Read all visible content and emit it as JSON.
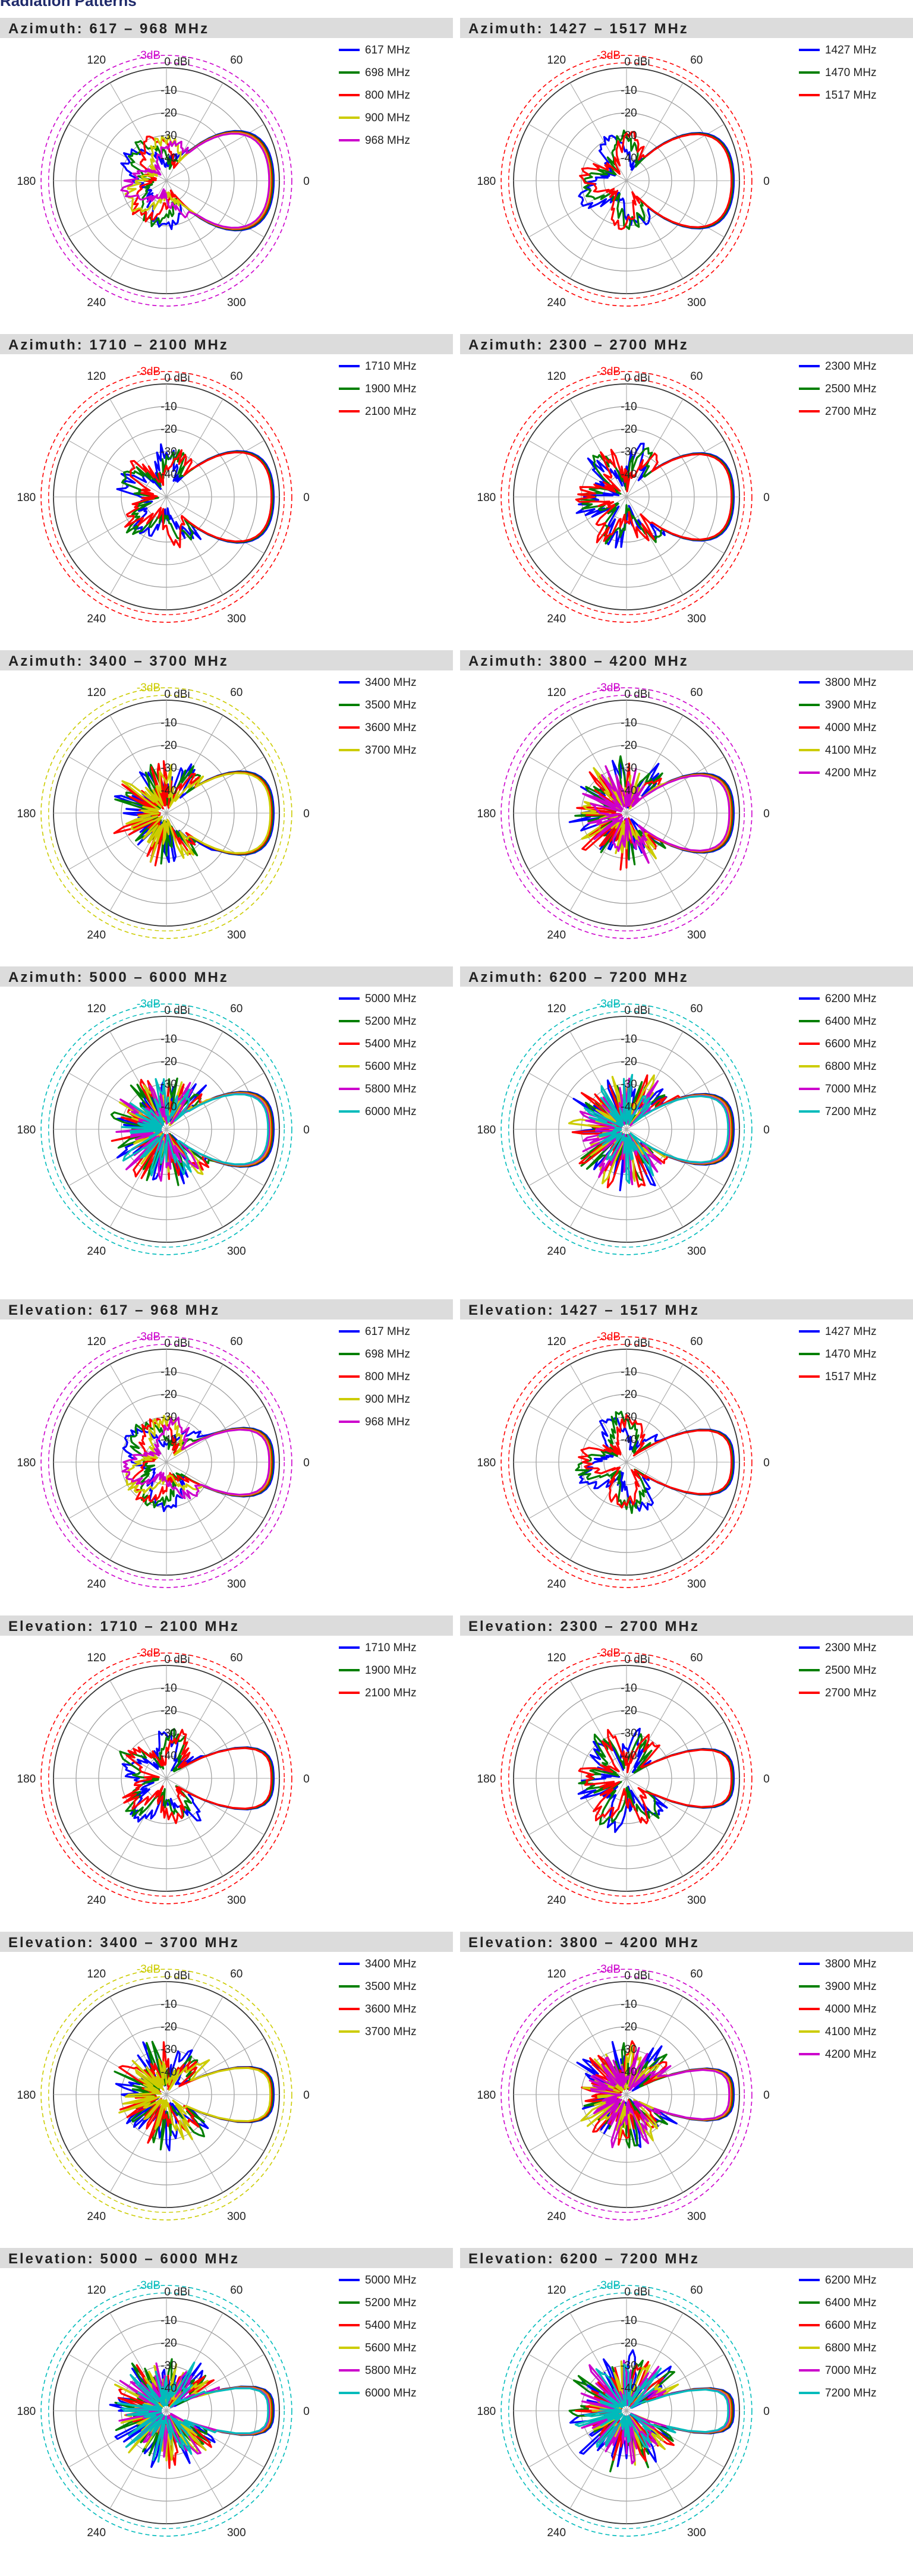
{
  "page": {
    "title": "Radiation Patterns"
  },
  "chart_data": [
    {
      "type": "polar",
      "title": "Azimuth:  617 – 968 MHz",
      "kind": "azimuth",
      "series": [
        {
          "name": "617 MHz",
          "color": "#0000ff"
        },
        {
          "name": "698 MHz",
          "color": "#007f00"
        },
        {
          "name": "800 MHz",
          "color": "#ff0000"
        },
        {
          "name": "900 MHz",
          "color": "#cccc00"
        },
        {
          "name": "968 MHz",
          "color": "#cc00cc"
        }
      ],
      "gain_labels": [
        "0 dBi",
        "-10",
        "-20",
        "-30",
        "-40"
      ],
      "angle_labels": [
        "0",
        "60",
        "120",
        "180",
        "240",
        "300"
      ],
      "ref_label": "-3dB",
      "ref_color": "#cc00cc"
    },
    {
      "type": "polar",
      "title": "Azimuth:  1427 – 1517 MHz",
      "kind": "azimuth",
      "series": [
        {
          "name": "1427 MHz",
          "color": "#0000ff"
        },
        {
          "name": "1470 MHz",
          "color": "#007f00"
        },
        {
          "name": "1517 MHz",
          "color": "#ff0000"
        }
      ],
      "gain_labels": [
        "0 dBi",
        "-10",
        "-20",
        "-30",
        "-40"
      ],
      "angle_labels": [
        "0",
        "60",
        "120",
        "180",
        "240",
        "300"
      ],
      "ref_label": "-3dB",
      "ref_color": "#ff0000"
    },
    {
      "type": "polar",
      "title": "Azimuth:  1710 – 2100 MHz",
      "kind": "azimuth",
      "series": [
        {
          "name": "1710 MHz",
          "color": "#0000ff"
        },
        {
          "name": "1900 MHz",
          "color": "#007f00"
        },
        {
          "name": "2100 MHz",
          "color": "#ff0000"
        }
      ],
      "gain_labels": [
        "0 dBi",
        "-10",
        "-20",
        "-30",
        "-40"
      ],
      "angle_labels": [
        "0",
        "60",
        "120",
        "180",
        "240",
        "300"
      ],
      "ref_label": "-3dB",
      "ref_color": "#ff0000"
    },
    {
      "type": "polar",
      "title": "Azimuth:  2300 – 2700 MHz",
      "kind": "azimuth",
      "series": [
        {
          "name": "2300 MHz",
          "color": "#0000ff"
        },
        {
          "name": "2500 MHz",
          "color": "#007f00"
        },
        {
          "name": "2700 MHz",
          "color": "#ff0000"
        }
      ],
      "gain_labels": [
        "0 dBi",
        "-10",
        "-20",
        "-30",
        "-40"
      ],
      "angle_labels": [
        "0",
        "60",
        "120",
        "180",
        "240",
        "300"
      ],
      "ref_label": "-3dB",
      "ref_color": "#ff0000"
    },
    {
      "type": "polar",
      "title": "Azimuth:  3400 – 3700 MHz",
      "kind": "azimuth",
      "series": [
        {
          "name": "3400 MHz",
          "color": "#0000ff"
        },
        {
          "name": "3500 MHz",
          "color": "#007f00"
        },
        {
          "name": "3600 MHz",
          "color": "#ff0000"
        },
        {
          "name": "3700 MHz",
          "color": "#cccc00"
        }
      ],
      "gain_labels": [
        "0 dBi",
        "-10",
        "-20",
        "-30",
        "-40"
      ],
      "angle_labels": [
        "0",
        "60",
        "120",
        "180",
        "240",
        "300"
      ],
      "ref_label": "-3dB",
      "ref_color": "#cccc00"
    },
    {
      "type": "polar",
      "title": "Azimuth:  3800 – 4200 MHz",
      "kind": "azimuth",
      "series": [
        {
          "name": "3800 MHz",
          "color": "#0000ff"
        },
        {
          "name": "3900 MHz",
          "color": "#007f00"
        },
        {
          "name": "4000 MHz",
          "color": "#ff0000"
        },
        {
          "name": "4100 MHz",
          "color": "#cccc00"
        },
        {
          "name": "4200 MHz",
          "color": "#cc00cc"
        }
      ],
      "gain_labels": [
        "0 dBi",
        "-10",
        "-20",
        "-30",
        "-40"
      ],
      "angle_labels": [
        "0",
        "60",
        "120",
        "180",
        "240",
        "300"
      ],
      "ref_label": "-3dB",
      "ref_color": "#cc00cc"
    },
    {
      "type": "polar",
      "title": "Azimuth:  5000 – 6000 MHz",
      "kind": "azimuth",
      "series": [
        {
          "name": "5000 MHz",
          "color": "#0000ff"
        },
        {
          "name": "5200 MHz",
          "color": "#007f00"
        },
        {
          "name": "5400 MHz",
          "color": "#ff0000"
        },
        {
          "name": "5600 MHz",
          "color": "#cccc00"
        },
        {
          "name": "5800 MHz",
          "color": "#cc00cc"
        },
        {
          "name": "6000 MHz",
          "color": "#00bbbb"
        }
      ],
      "gain_labels": [
        "0 dBi",
        "-10",
        "-20",
        "-30",
        "-40"
      ],
      "angle_labels": [
        "0",
        "60",
        "120",
        "180",
        "240",
        "300"
      ],
      "ref_label": "-3dB",
      "ref_color": "#00bbbb"
    },
    {
      "type": "polar",
      "title": "Azimuth:  6200 – 7200 MHz",
      "kind": "azimuth",
      "series": [
        {
          "name": "6200 MHz",
          "color": "#0000ff"
        },
        {
          "name": "6400 MHz",
          "color": "#007f00"
        },
        {
          "name": "6600 MHz",
          "color": "#ff0000"
        },
        {
          "name": "6800 MHz",
          "color": "#cccc00"
        },
        {
          "name": "7000 MHz",
          "color": "#cc00cc"
        },
        {
          "name": "7200 MHz",
          "color": "#00bbbb"
        }
      ],
      "gain_labels": [
        "0 dBi",
        "-10",
        "-20",
        "-30",
        "-40"
      ],
      "angle_labels": [
        "0",
        "60",
        "120",
        "180",
        "240",
        "300"
      ],
      "ref_label": "-3dB",
      "ref_color": "#00bbbb"
    },
    {
      "type": "polar",
      "title": "Elevation:  617 – 968 MHz",
      "kind": "elevation",
      "series": [
        {
          "name": "617 MHz",
          "color": "#0000ff"
        },
        {
          "name": "698 MHz",
          "color": "#007f00"
        },
        {
          "name": "800 MHz",
          "color": "#ff0000"
        },
        {
          "name": "900 MHz",
          "color": "#cccc00"
        },
        {
          "name": "968 MHz",
          "color": "#cc00cc"
        }
      ],
      "gain_labels": [
        "0 dBi",
        "-10",
        "-20",
        "-30",
        "-40"
      ],
      "angle_labels": [
        "0",
        "60",
        "120",
        "180",
        "240",
        "300"
      ],
      "ref_label": "-3dB",
      "ref_color": "#cc00cc"
    },
    {
      "type": "polar",
      "title": "Elevation:  1427 – 1517 MHz",
      "kind": "elevation",
      "series": [
        {
          "name": "1427 MHz",
          "color": "#0000ff"
        },
        {
          "name": "1470 MHz",
          "color": "#007f00"
        },
        {
          "name": "1517 MHz",
          "color": "#ff0000"
        }
      ],
      "gain_labels": [
        "0 dBi",
        "-10",
        "-20",
        "-30",
        "-40"
      ],
      "angle_labels": [
        "0",
        "60",
        "120",
        "180",
        "240",
        "300"
      ],
      "ref_label": "-3dB",
      "ref_color": "#ff0000"
    },
    {
      "type": "polar",
      "title": "Elevation:  1710 – 2100 MHz",
      "kind": "elevation",
      "series": [
        {
          "name": "1710 MHz",
          "color": "#0000ff"
        },
        {
          "name": "1900 MHz",
          "color": "#007f00"
        },
        {
          "name": "2100 MHz",
          "color": "#ff0000"
        }
      ],
      "gain_labels": [
        "0 dBi",
        "-10",
        "-20",
        "-30",
        "-40"
      ],
      "angle_labels": [
        "0",
        "60",
        "120",
        "180",
        "240",
        "300"
      ],
      "ref_label": "-3dB",
      "ref_color": "#ff0000"
    },
    {
      "type": "polar",
      "title": "Elevation:  2300 – 2700 MHz",
      "kind": "elevation",
      "series": [
        {
          "name": "2300 MHz",
          "color": "#0000ff"
        },
        {
          "name": "2500 MHz",
          "color": "#007f00"
        },
        {
          "name": "2700 MHz",
          "color": "#ff0000"
        }
      ],
      "gain_labels": [
        "0 dBi",
        "-10",
        "-20",
        "-30",
        "-40"
      ],
      "angle_labels": [
        "0",
        "60",
        "120",
        "180",
        "240",
        "300"
      ],
      "ref_label": "-3dB",
      "ref_color": "#ff0000"
    },
    {
      "type": "polar",
      "title": "Elevation:  3400 – 3700 MHz",
      "kind": "elevation",
      "series": [
        {
          "name": "3400 MHz",
          "color": "#0000ff"
        },
        {
          "name": "3500 MHz",
          "color": "#007f00"
        },
        {
          "name": "3600 MHz",
          "color": "#ff0000"
        },
        {
          "name": "3700 MHz",
          "color": "#cccc00"
        }
      ],
      "gain_labels": [
        "0 dBi",
        "-10",
        "-20",
        "-30",
        "-40"
      ],
      "angle_labels": [
        "0",
        "60",
        "120",
        "180",
        "240",
        "300"
      ],
      "ref_label": "-3dB",
      "ref_color": "#cccc00"
    },
    {
      "type": "polar",
      "title": "Elevation:  3800 – 4200 MHz",
      "kind": "elevation",
      "series": [
        {
          "name": "3800 MHz",
          "color": "#0000ff"
        },
        {
          "name": "3900 MHz",
          "color": "#007f00"
        },
        {
          "name": "4000 MHz",
          "color": "#ff0000"
        },
        {
          "name": "4100 MHz",
          "color": "#cccc00"
        },
        {
          "name": "4200 MHz",
          "color": "#cc00cc"
        }
      ],
      "gain_labels": [
        "0 dBi",
        "-10",
        "-20",
        "-30",
        "-40"
      ],
      "angle_labels": [
        "0",
        "60",
        "120",
        "180",
        "240",
        "300"
      ],
      "ref_label": "-3dB",
      "ref_color": "#cc00cc"
    },
    {
      "type": "polar",
      "title": "Elevation:  5000 – 6000 MHz",
      "kind": "elevation",
      "series": [
        {
          "name": "5000 MHz",
          "color": "#0000ff"
        },
        {
          "name": "5200 MHz",
          "color": "#007f00"
        },
        {
          "name": "5400 MHz",
          "color": "#ff0000"
        },
        {
          "name": "5600 MHz",
          "color": "#cccc00"
        },
        {
          "name": "5800 MHz",
          "color": "#cc00cc"
        },
        {
          "name": "6000 MHz",
          "color": "#00bbbb"
        }
      ],
      "gain_labels": [
        "0 dBi",
        "-10",
        "-20",
        "-30",
        "-40"
      ],
      "angle_labels": [
        "0",
        "60",
        "120",
        "180",
        "240",
        "300"
      ],
      "ref_label": "-3dB",
      "ref_color": "#00bbbb"
    },
    {
      "type": "polar",
      "title": "Elevation:  6200 – 7200 MHz",
      "kind": "elevation",
      "series": [
        {
          "name": "6200 MHz",
          "color": "#0000ff"
        },
        {
          "name": "6400 MHz",
          "color": "#007f00"
        },
        {
          "name": "6600 MHz",
          "color": "#ff0000"
        },
        {
          "name": "6800 MHz",
          "color": "#cccc00"
        },
        {
          "name": "7000 MHz",
          "color": "#cc00cc"
        },
        {
          "name": "7200 MHz",
          "color": "#00bbbb"
        }
      ],
      "gain_labels": [
        "0 dBi",
        "-10",
        "-20",
        "-30",
        "-40"
      ],
      "angle_labels": [
        "0",
        "60",
        "120",
        "180",
        "240",
        "300"
      ],
      "ref_label": "-3dB",
      "ref_color": "#00bbbb"
    }
  ]
}
